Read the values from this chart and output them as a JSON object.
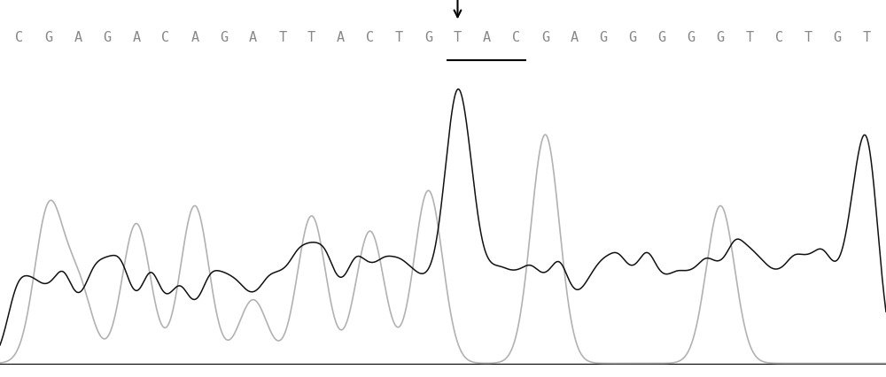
{
  "sequence": [
    "C",
    "G",
    "A",
    "G",
    "A",
    "C",
    "A",
    "G",
    "A",
    "T",
    "T",
    "A",
    "C",
    "T",
    "G",
    "T",
    "A",
    "C",
    "G",
    "A",
    "G",
    "G",
    "G",
    "G",
    "G",
    "T",
    "C",
    "T",
    "G",
    "T"
  ],
  "underline_indices": [
    15,
    16,
    17
  ],
  "arrow_index": 15,
  "bg_color": "#ffffff",
  "seq_color": "#888888",
  "arrow_color": "#000000",
  "underline_color": "#000000",
  "seq_fontsize": 11,
  "black_color": "#111111",
  "gray_color": "#999999",
  "sigma_black": 0.013,
  "sigma_gray": 0.016,
  "peak_data": [
    [
      0,
      0.3,
      0.0
    ],
    [
      1,
      0.25,
      0.6
    ],
    [
      2,
      0.2,
      0.3
    ],
    [
      3,
      0.35,
      0.0
    ],
    [
      4,
      0.2,
      0.55
    ],
    [
      5,
      0.2,
      0.0
    ],
    [
      6,
      0.18,
      0.62
    ],
    [
      7,
      0.3,
      0.0
    ],
    [
      8,
      0.22,
      0.25
    ],
    [
      9,
      0.3,
      0.0
    ],
    [
      10,
      0.4,
      0.58
    ],
    [
      11,
      0.25,
      0.0
    ],
    [
      12,
      0.32,
      0.52
    ],
    [
      13,
      0.35,
      0.0
    ],
    [
      14,
      0.28,
      0.68
    ],
    [
      15,
      1.0,
      0.0
    ],
    [
      16,
      0.32,
      0.0
    ],
    [
      17,
      0.3,
      0.0
    ],
    [
      18,
      0.28,
      0.9
    ],
    [
      19,
      0.22,
      0.0
    ],
    [
      20,
      0.35,
      0.0
    ],
    [
      21,
      0.3,
      0.0
    ],
    [
      22,
      0.28,
      0.0
    ],
    [
      23,
      0.3,
      0.0
    ],
    [
      24,
      0.32,
      0.62
    ],
    [
      25,
      0.38,
      0.0
    ],
    [
      26,
      0.3,
      0.0
    ],
    [
      27,
      0.35,
      0.0
    ],
    [
      28,
      0.3,
      0.0
    ],
    [
      29,
      0.85,
      0.0
    ]
  ]
}
